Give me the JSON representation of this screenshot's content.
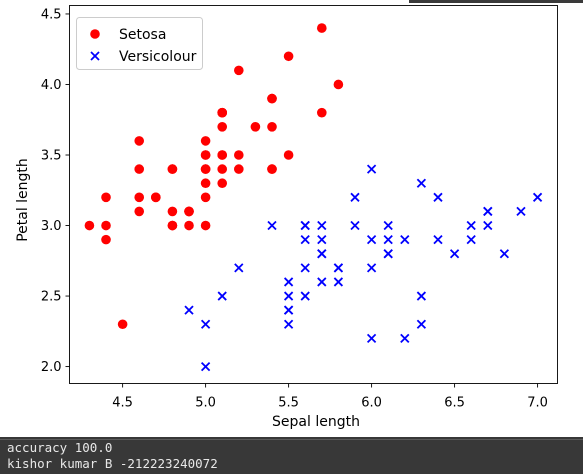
{
  "chart_data": {
    "type": "scatter",
    "title": "",
    "xlabel": "Sepal length",
    "ylabel": "Petal length",
    "xlim": [
      4.18,
      7.12
    ],
    "ylim": [
      1.88,
      4.56
    ],
    "xticks": [
      "4.5",
      "5.0",
      "5.5",
      "6.0",
      "6.5",
      "7.0"
    ],
    "yticks": [
      "2.0",
      "2.5",
      "3.0",
      "3.5",
      "4.0",
      "4.5"
    ],
    "grid": false,
    "legend": "top-left",
    "series": [
      {
        "name": "Setosa",
        "marker": "circle",
        "color": "#ff0000",
        "points": [
          [
            5.1,
            3.5
          ],
          [
            4.9,
            3.0
          ],
          [
            4.7,
            3.2
          ],
          [
            4.6,
            3.1
          ],
          [
            5.0,
            3.6
          ],
          [
            5.4,
            3.9
          ],
          [
            4.6,
            3.4
          ],
          [
            5.0,
            3.4
          ],
          [
            4.4,
            2.9
          ],
          [
            4.9,
            3.1
          ],
          [
            5.4,
            3.7
          ],
          [
            4.8,
            3.4
          ],
          [
            4.8,
            3.0
          ],
          [
            4.3,
            3.0
          ],
          [
            5.8,
            4.0
          ],
          [
            5.7,
            4.4
          ],
          [
            5.4,
            3.9
          ],
          [
            5.1,
            3.5
          ],
          [
            5.7,
            3.8
          ],
          [
            5.1,
            3.8
          ],
          [
            5.4,
            3.4
          ],
          [
            5.1,
            3.7
          ],
          [
            4.6,
            3.6
          ],
          [
            5.1,
            3.3
          ],
          [
            4.8,
            3.4
          ],
          [
            5.0,
            3.0
          ],
          [
            5.0,
            3.4
          ],
          [
            5.2,
            3.5
          ],
          [
            5.2,
            3.4
          ],
          [
            4.7,
            3.2
          ],
          [
            4.8,
            3.1
          ],
          [
            5.4,
            3.4
          ],
          [
            5.2,
            4.1
          ],
          [
            5.5,
            4.2
          ],
          [
            4.9,
            3.1
          ],
          [
            5.0,
            3.2
          ],
          [
            5.5,
            3.5
          ],
          [
            4.9,
            3.1
          ],
          [
            4.4,
            3.0
          ],
          [
            5.1,
            3.4
          ],
          [
            5.0,
            3.5
          ],
          [
            4.5,
            2.3
          ],
          [
            4.4,
            3.2
          ],
          [
            5.0,
            3.5
          ],
          [
            5.1,
            3.8
          ],
          [
            4.8,
            3.0
          ],
          [
            5.1,
            3.8
          ],
          [
            4.6,
            3.2
          ],
          [
            5.3,
            3.7
          ],
          [
            5.0,
            3.3
          ]
        ]
      },
      {
        "name": "Versicolour",
        "marker": "x",
        "color": "#0000ff",
        "points": [
          [
            7.0,
            3.2
          ],
          [
            6.4,
            3.2
          ],
          [
            6.9,
            3.1
          ],
          [
            5.5,
            2.3
          ],
          [
            6.5,
            2.8
          ],
          [
            5.7,
            2.8
          ],
          [
            6.3,
            3.3
          ],
          [
            4.9,
            2.4
          ],
          [
            6.6,
            2.9
          ],
          [
            5.2,
            2.7
          ],
          [
            5.0,
            2.0
          ],
          [
            5.9,
            3.0
          ],
          [
            6.0,
            2.2
          ],
          [
            6.1,
            2.9
          ],
          [
            5.6,
            2.9
          ],
          [
            6.7,
            3.1
          ],
          [
            5.6,
            3.0
          ],
          [
            5.8,
            2.7
          ],
          [
            6.2,
            2.2
          ],
          [
            5.6,
            2.5
          ],
          [
            5.9,
            3.2
          ],
          [
            6.1,
            2.8
          ],
          [
            6.3,
            2.5
          ],
          [
            6.1,
            2.8
          ],
          [
            6.4,
            2.9
          ],
          [
            6.6,
            3.0
          ],
          [
            6.8,
            2.8
          ],
          [
            6.7,
            3.0
          ],
          [
            6.0,
            2.9
          ],
          [
            5.7,
            2.6
          ],
          [
            5.5,
            2.4
          ],
          [
            5.5,
            2.4
          ],
          [
            5.8,
            2.7
          ],
          [
            6.0,
            2.7
          ],
          [
            5.4,
            3.0
          ],
          [
            6.0,
            3.4
          ],
          [
            6.7,
            3.1
          ],
          [
            6.3,
            2.3
          ],
          [
            5.6,
            3.0
          ],
          [
            5.5,
            2.5
          ],
          [
            5.5,
            2.6
          ],
          [
            6.1,
            3.0
          ],
          [
            5.8,
            2.6
          ],
          [
            5.0,
            2.3
          ],
          [
            5.6,
            2.7
          ],
          [
            5.7,
            3.0
          ],
          [
            5.7,
            2.9
          ],
          [
            6.2,
            2.9
          ],
          [
            5.1,
            2.5
          ],
          [
            5.7,
            2.8
          ]
        ]
      }
    ]
  },
  "output": {
    "line1": "accuracy 100.0",
    "line2": "kishor kumar B -212223240072"
  }
}
